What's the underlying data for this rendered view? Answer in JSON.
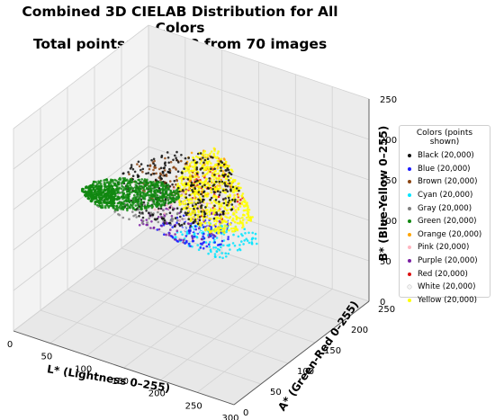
{
  "title_line1": "Combined 3D CIELAB Distribution for All Colors",
  "title_line2": "Total points: 240,000 from 70 images",
  "chart_data": {
    "type": "scatter",
    "projection": "3d",
    "xlabel": "L* (Lightness 0–255)",
    "ylabel": "A* (Green-Red 0–255)",
    "zlabel": "B* (Blue-Yellow 0–255)",
    "xlim": [
      0,
      300
    ],
    "ylim": [
      0,
      250
    ],
    "zlim": [
      0,
      250
    ],
    "xticks": [
      0,
      50,
      100,
      150,
      200,
      250,
      300
    ],
    "yticks": [
      0,
      50,
      100,
      150,
      200,
      250
    ],
    "zticks": [
      0,
      50,
      100,
      150,
      200,
      250
    ],
    "grid": true,
    "legend_title": "Colors (points shown)",
    "legend_position": "right",
    "series": [
      {
        "name": "Black (20,000)",
        "color": "#111111",
        "count": 20000
      },
      {
        "name": "Blue (20,000)",
        "color": "#1a1aff",
        "count": 20000
      },
      {
        "name": "Brown (20,000)",
        "color": "#8b4513",
        "count": 20000
      },
      {
        "name": "Cyan (20,000)",
        "color": "#00e5ff",
        "count": 20000
      },
      {
        "name": "Gray (20,000)",
        "color": "#808080",
        "count": 20000
      },
      {
        "name": "Green (20,000)",
        "color": "#118811",
        "count": 20000
      },
      {
        "name": "Orange (20,000)",
        "color": "#ffa500",
        "count": 20000
      },
      {
        "name": "Pink (20,000)",
        "color": "#ffb6c1",
        "count": 20000
      },
      {
        "name": "Purple (20,000)",
        "color": "#7a1fa2",
        "count": 20000
      },
      {
        "name": "Red (20,000)",
        "color": "#dd1111",
        "count": 20000
      },
      {
        "name": "White (20,000)",
        "color": "#f4f4f4",
        "count": 20000
      },
      {
        "name": "Yellow (20,000)",
        "color": "#ffff00",
        "count": 20000
      }
    ]
  }
}
